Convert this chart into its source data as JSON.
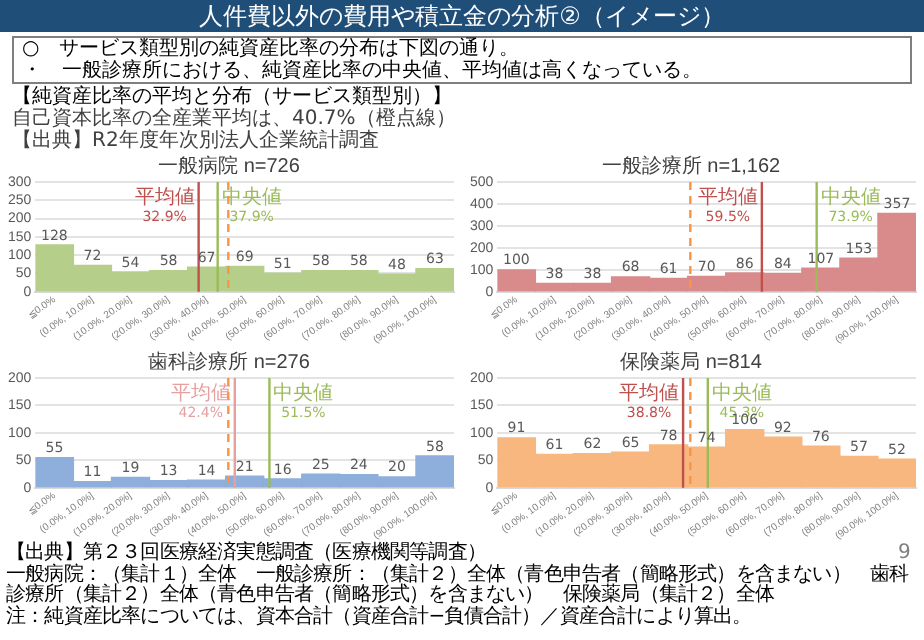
{
  "chart_data": [
    {
      "type": "other",
      "title": "人件費以外の費用や積立金の分析②（イメージ）",
      "annotations": [
        "○　サービス類型別の純資産比率の分布は下図の通り。",
        "・　一般診療所における、純資産比率の中央値、平均値は高くなっている。",
        "【純資産比率の平均と分布（サービス類型別）】",
        "自己資本比率の全産業平均は、40.7%（橙点線）",
        "【出典】R2年度年次別法人企業統計調査"
      ]
    },
    {
      "type": "bar",
      "title": "一般病院 n=726",
      "categories": [
        "≦0.0%",
        "(0.0%, 10.0%]",
        "(10.0%, 20.0%]",
        "(20.0%, 30.0%]",
        "(30.0%, 40.0%]",
        "(40.0%, 50.0%]",
        "(50.0%, 60.0%]",
        "(60.0%, 70.0%]",
        "(70.0%, 80.0%]",
        "(80.0%, 90.0%]",
        "(90.0%, 100.0%]"
      ],
      "values": [
        128,
        72,
        54,
        58,
        67,
        69,
        51,
        58,
        58,
        48,
        63
      ],
      "color": "#b5cf8a",
      "ylim": [
        0,
        300
      ],
      "yticks": [
        0,
        50,
        100,
        150,
        200,
        250,
        300
      ],
      "grid": "y",
      "legend": false,
      "data_labels": true,
      "ref_lines": [
        {
          "axis": "x",
          "value": "(30.0%, 40.0%]",
          "label": "平均値\n32.9%",
          "color": "#c0504d",
          "line_style": "solid"
        },
        {
          "axis": "x",
          "value": "(30.0%, 40.0%]",
          "label": "中央値\n37.9%",
          "color": "#9bbb59",
          "line_style": "solid"
        },
        {
          "axis": "x",
          "value": "(40.0%, 50.0%]",
          "color": "#f79646",
          "line_style": "dashed"
        }
      ]
    },
    {
      "type": "bar",
      "title": "一般診療所 n=1,162",
      "categories": [
        "≦0.0%",
        "(0.0%, 10.0%]",
        "(10.0%, 20.0%]",
        "(20.0%, 30.0%]",
        "(30.0%, 40.0%]",
        "(40.0%, 50.0%]",
        "(50.0%, 60.0%]",
        "(60.0%, 70.0%]",
        "(70.0%, 80.0%]",
        "(80.0%, 90.0%]",
        "(90.0%, 100.0%]"
      ],
      "values": [
        100,
        38,
        38,
        68,
        61,
        70,
        86,
        84,
        107,
        153,
        357
      ],
      "color": "#d98b8b",
      "ylim": [
        0,
        500
      ],
      "yticks": [
        0,
        100,
        200,
        300,
        400,
        500
      ],
      "grid": "y",
      "legend": false,
      "data_labels": true,
      "ref_lines": [
        {
          "axis": "x",
          "value": "(50.0%, 60.0%]",
          "label": "平均値\n59.5%",
          "color": "#c0504d",
          "line_style": "solid"
        },
        {
          "axis": "x",
          "value": "(70.0%, 80.0%]",
          "label": "中央値\n73.9%",
          "color": "#9bbb59",
          "line_style": "solid"
        },
        {
          "axis": "x",
          "value": "(40.0%, 50.0%]",
          "color": "#f79646",
          "line_style": "dashed"
        }
      ]
    },
    {
      "type": "bar",
      "title": "歯科診療所 n=276",
      "categories": [
        "≦0.0%",
        "(0.0%, 10.0%]",
        "(10.0%, 20.0%]",
        "(20.0%, 30.0%]",
        "(30.0%, 40.0%]",
        "(40.0%, 50.0%]",
        "(50.0%, 60.0%]",
        "(60.0%, 70.0%]",
        "(70.0%, 80.0%]",
        "(80.0%, 90.0%]",
        "(90.0%, 100.0%]"
      ],
      "values": [
        55,
        11,
        19,
        13,
        14,
        21,
        16,
        25,
        24,
        20,
        58
      ],
      "color": "#8eaedb",
      "ylim": [
        0,
        200
      ],
      "yticks": [
        0,
        50,
        100,
        150,
        200
      ],
      "grid": "y",
      "legend": false,
      "data_labels": true,
      "ref_lines": [
        {
          "axis": "x",
          "value": "(40.0%, 50.0%]",
          "label": "平均値\n42.4%",
          "color": "#e6a0a0",
          "line_style": "solid"
        },
        {
          "axis": "x",
          "value": "(50.0%, 60.0%]",
          "label": "中央値\n51.5%",
          "color": "#9bbb59",
          "line_style": "solid"
        },
        {
          "axis": "x",
          "value": "(40.0%, 50.0%]",
          "color": "#f79646",
          "line_style": "dashed"
        }
      ]
    },
    {
      "type": "bar",
      "title": "保険薬局 n=814",
      "categories": [
        "≦0.0%",
        "(0.0%, 10.0%]",
        "(10.0%, 20.0%]",
        "(20.0%, 30.0%]",
        "(30.0%, 40.0%]",
        "(40.0%, 50.0%]",
        "(50.0%, 60.0%]",
        "(60.0%, 70.0%]",
        "(70.0%, 80.0%]",
        "(80.0%, 90.0%]",
        "(90.0%, 100.0%]"
      ],
      "values": [
        91,
        61,
        62,
        65,
        78,
        74,
        106,
        92,
        76,
        57,
        52
      ],
      "color": "#f7b77e",
      "ylim": [
        0,
        200
      ],
      "yticks": [
        0,
        50,
        100,
        150,
        200
      ],
      "grid": "y",
      "legend": false,
      "data_labels": true,
      "ref_lines": [
        {
          "axis": "x",
          "value": "(30.0%, 40.0%]",
          "label": "平均値\n38.8%",
          "color": "#c0504d",
          "line_style": "solid"
        },
        {
          "axis": "x",
          "value": "(40.0%, 50.0%]",
          "label": "中央値\n45.3%",
          "color": "#9bbb59",
          "line_style": "solid"
        },
        {
          "axis": "x",
          "value": "(40.0%, 50.0%]",
          "color": "#f79646",
          "line_style": "dashed"
        }
      ]
    },
    {
      "type": "other",
      "annotations": [
        "【出典】第２３回医療経済実態調査（医療機関等調査）",
        "一般病院：（集計１）全体　一般診療所：（集計２）全体（青色申告者（簡略形式）を含まない）　歯科診療所（集計２）全体（青色申告者（簡略形式）を含まない）　保険薬局（集計２）全体",
        "注：純資産比率については、資本合計（資産合計−負債合計）／資産合計により算出。",
        "9"
      ]
    }
  ]
}
